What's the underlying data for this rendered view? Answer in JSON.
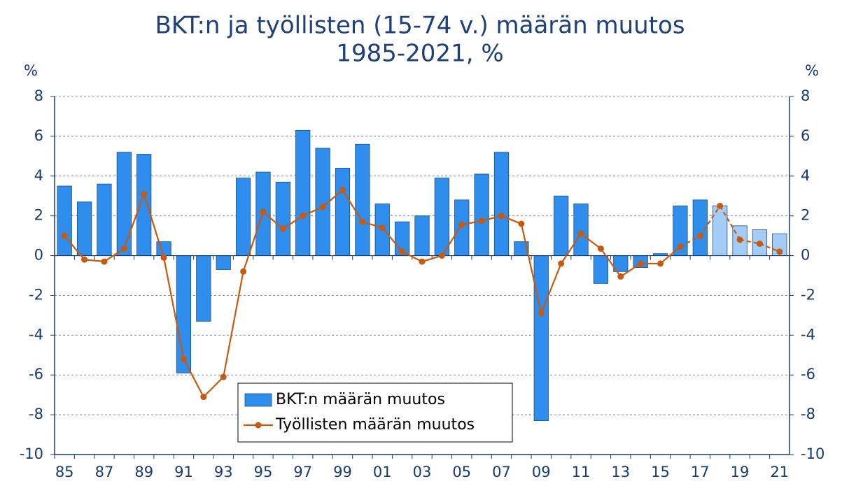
{
  "chart_data": {
    "type": "bar_line",
    "title": [
      "BKT:n ja työllisten (15-74 v.) määrän muutos",
      "1985-2021, %"
    ],
    "y_label": "%",
    "y2_label": "%",
    "categories": [
      "85",
      null,
      "87",
      null,
      "89",
      null,
      "91",
      null,
      "93",
      null,
      "95",
      null,
      "97",
      null,
      "99",
      null,
      "01",
      null,
      "03",
      null,
      "05",
      null,
      "07",
      null,
      "09",
      null,
      "11",
      null,
      "13",
      null,
      "15",
      null,
      "17",
      null,
      "19",
      null,
      "21"
    ],
    "series": [
      {
        "name": "BKT:n määrän muutos",
        "type": "bar",
        "color": "#2e8ded",
        "colors": [
          "#2e8ded",
          "#2e8ded",
          "#2e8ded",
          "#2e8ded",
          "#2e8ded",
          "#2e8ded",
          "#2e8ded",
          "#2e8ded",
          "#2e8ded",
          "#2e8ded",
          "#2e8ded",
          "#2e8ded",
          "#2e8ded",
          "#2e8ded",
          "#2e8ded",
          "#2e8ded",
          "#2e8ded",
          "#2e8ded",
          "#2e8ded",
          "#2e8ded",
          "#2e8ded",
          "#2e8ded",
          "#2e8ded",
          "#2e8ded",
          "#2e8ded",
          "#2e8ded",
          "#2e8ded",
          "#2e8ded",
          "#2e8ded",
          "#2e8ded",
          "#2e8ded",
          "#2e8ded",
          "#2e8ded",
          "#a3cdf6",
          "#a3cdf6",
          "#a3cdf6",
          "#a3cdf6"
        ],
        "values": [
          3.5,
          2.7,
          3.6,
          5.2,
          5.1,
          0.7,
          -5.9,
          -3.3,
          -0.7,
          3.9,
          4.2,
          3.7,
          6.3,
          5.4,
          4.4,
          5.6,
          2.6,
          1.7,
          2.0,
          3.9,
          2.8,
          4.1,
          5.2,
          0.7,
          -8.3,
          3.0,
          2.6,
          -1.4,
          -0.8,
          -0.6,
          0.1,
          2.5,
          2.8,
          2.5,
          1.5,
          1.3,
          1.1
        ]
      },
      {
        "name": "Työllisten määrän muutos",
        "type": "line",
        "color": "#c55a11",
        "dashed": [
          false,
          false,
          false,
          false,
          false,
          false,
          false,
          false,
          false,
          false,
          false,
          false,
          false,
          false,
          false,
          false,
          false,
          false,
          false,
          false,
          false,
          false,
          false,
          false,
          false,
          false,
          false,
          false,
          false,
          false,
          false,
          false,
          true,
          true,
          true,
          true,
          true
        ],
        "values": [
          1.0,
          -0.2,
          -0.3,
          0.35,
          3.1,
          -0.1,
          -5.2,
          -7.1,
          -6.1,
          -0.8,
          2.2,
          1.35,
          2.0,
          2.45,
          3.3,
          1.7,
          1.4,
          0.2,
          -0.3,
          0.0,
          1.55,
          1.75,
          2.0,
          1.6,
          -2.9,
          -0.4,
          1.1,
          0.35,
          -1.05,
          -0.4,
          -0.4,
          0.45,
          1.0,
          2.5,
          0.8,
          0.6,
          0.2
        ]
      }
    ],
    "ylim": [
      -10,
      8
    ],
    "yticks": [
      -10,
      -8,
      -6,
      -4,
      -2,
      0,
      2,
      4,
      6,
      8
    ],
    "y2lim": [
      -10,
      8
    ],
    "y2ticks": [
      -10,
      -8,
      -6,
      -4,
      -2,
      0,
      2,
      4,
      6,
      8
    ],
    "grid": true
  }
}
